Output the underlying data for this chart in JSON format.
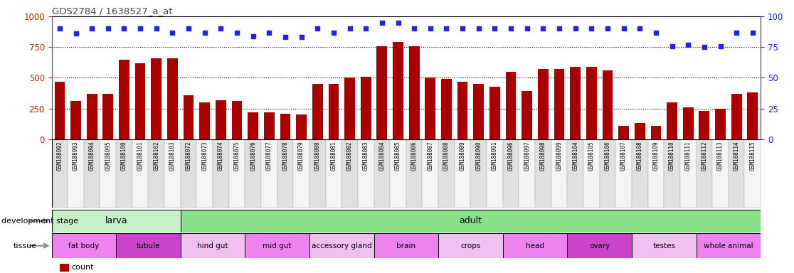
{
  "title": "GDS2784 / 1638527_a_at",
  "samples": [
    "GSM188092",
    "GSM188093",
    "GSM188094",
    "GSM188095",
    "GSM188100",
    "GSM188101",
    "GSM188102",
    "GSM188103",
    "GSM188072",
    "GSM188073",
    "GSM188074",
    "GSM188075",
    "GSM188076",
    "GSM188077",
    "GSM188078",
    "GSM188079",
    "GSM188080",
    "GSM188081",
    "GSM188082",
    "GSM188083",
    "GSM188084",
    "GSM188085",
    "GSM188086",
    "GSM188087",
    "GSM188088",
    "GSM188089",
    "GSM188090",
    "GSM188091",
    "GSM188096",
    "GSM188097",
    "GSM188098",
    "GSM188099",
    "GSM188104",
    "GSM188105",
    "GSM188106",
    "GSM188107",
    "GSM188108",
    "GSM188109",
    "GSM188110",
    "GSM188111",
    "GSM188112",
    "GSM188113",
    "GSM188114",
    "GSM188115"
  ],
  "counts": [
    470,
    310,
    370,
    370,
    650,
    620,
    660,
    660,
    360,
    300,
    320,
    310,
    220,
    220,
    210,
    200,
    450,
    450,
    500,
    510,
    760,
    790,
    760,
    500,
    490,
    470,
    450,
    430,
    550,
    390,
    570,
    570,
    590,
    590,
    560,
    110,
    130,
    110,
    300,
    260,
    230,
    250,
    370,
    380
  ],
  "percentile": [
    90,
    86,
    90,
    90,
    90,
    90,
    90,
    87,
    90,
    87,
    90,
    87,
    84,
    87,
    83,
    83,
    90,
    87,
    90,
    90,
    95,
    95,
    90,
    90,
    90,
    90,
    90,
    90,
    90,
    90,
    90,
    90,
    90,
    90,
    90,
    90,
    90,
    87,
    76,
    77,
    75,
    76,
    87,
    87
  ],
  "development_stages": [
    {
      "label": "larva",
      "start": 0,
      "end": 8,
      "color": "#c8f0c8"
    },
    {
      "label": "adult",
      "start": 8,
      "end": 44,
      "color": "#88e088"
    }
  ],
  "tissues": [
    {
      "label": "fat body",
      "start": 0,
      "end": 4,
      "color": "#ee82ee"
    },
    {
      "label": "tubule",
      "start": 4,
      "end": 8,
      "color": "#cc44cc"
    },
    {
      "label": "hind gut",
      "start": 8,
      "end": 12,
      "color": "#f0c0f0"
    },
    {
      "label": "mid gut",
      "start": 12,
      "end": 16,
      "color": "#ee82ee"
    },
    {
      "label": "accessory gland",
      "start": 16,
      "end": 20,
      "color": "#f0c0f0"
    },
    {
      "label": "brain",
      "start": 20,
      "end": 24,
      "color": "#ee82ee"
    },
    {
      "label": "crops",
      "start": 24,
      "end": 28,
      "color": "#f0c0f0"
    },
    {
      "label": "head",
      "start": 28,
      "end": 32,
      "color": "#ee82ee"
    },
    {
      "label": "ovary",
      "start": 32,
      "end": 36,
      "color": "#cc44cc"
    },
    {
      "label": "testes",
      "start": 36,
      "end": 40,
      "color": "#f0c0f0"
    },
    {
      "label": "whole animal",
      "start": 40,
      "end": 44,
      "color": "#ee82ee"
    }
  ],
  "bar_color": "#aa0000",
  "dot_color": "#2222ee",
  "ylim_left": [
    0,
    1000
  ],
  "ylim_right": [
    0,
    100
  ],
  "yticks_left": [
    0,
    250,
    500,
    750,
    1000
  ],
  "yticks_right": [
    0,
    25,
    50,
    75,
    100
  ],
  "title_color": "#444444",
  "left_axis_color": "#cc2200",
  "right_axis_color": "#2222ee",
  "xtick_bg_even": "#e0e0e0",
  "xtick_bg_odd": "#f4f4f4"
}
